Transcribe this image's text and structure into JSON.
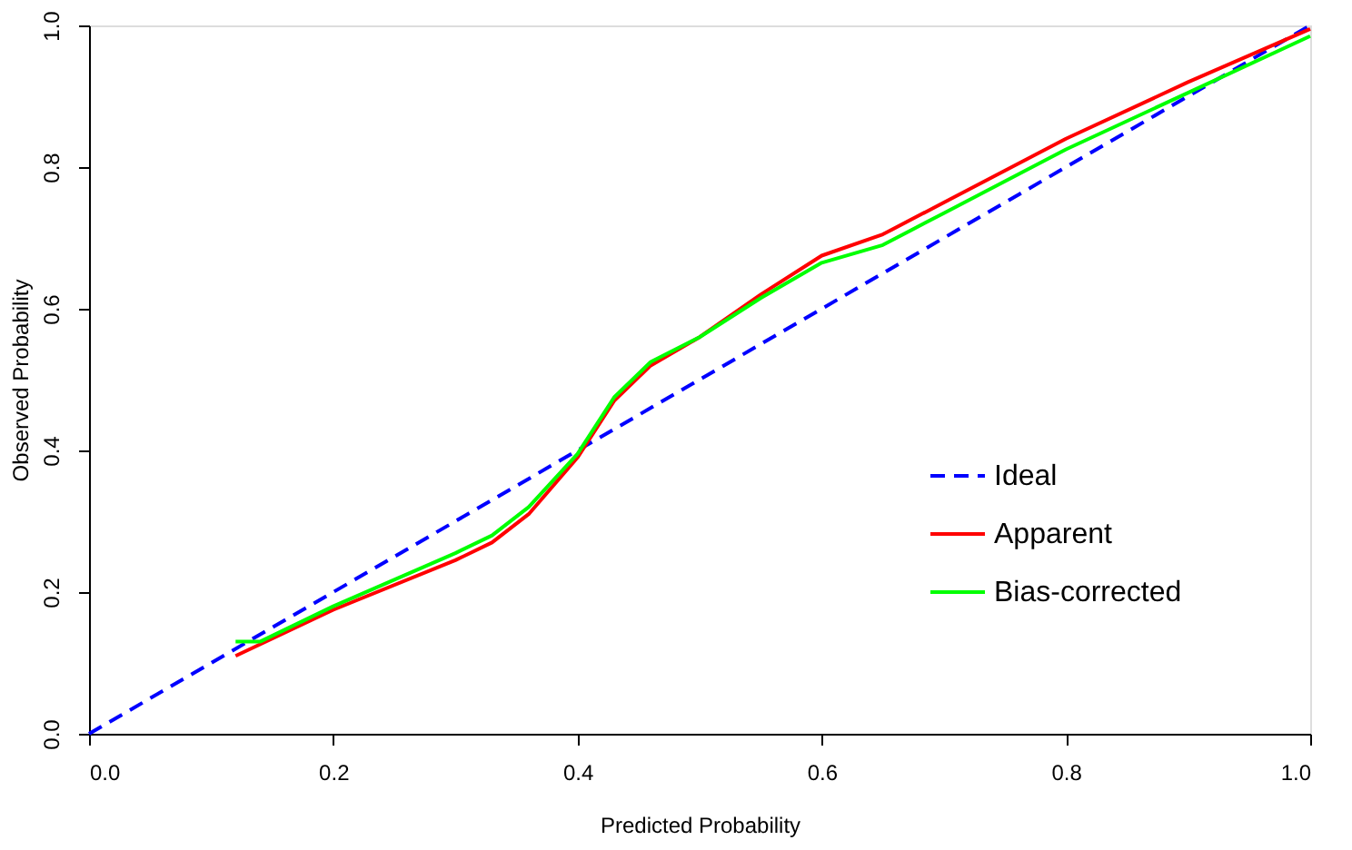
{
  "chart_data": {
    "type": "line",
    "xlabel": "Predicted Probability",
    "ylabel": "Observed Probability",
    "xlim": [
      0,
      1
    ],
    "ylim": [
      0,
      1
    ],
    "xticks": [
      {
        "value": 0,
        "label": "0.0"
      },
      0.2,
      0.4,
      0.6,
      0.8,
      {
        "value": 1,
        "label": "1.0"
      }
    ],
    "yticks": [
      {
        "value": 0,
        "label": "0.0"
      },
      0.2,
      0.4,
      0.6,
      0.8,
      {
        "value": 1,
        "label": "1.0"
      }
    ],
    "grid": false,
    "legend": "bottom right",
    "marker": "none",
    "series": [
      {
        "name": "Ideal",
        "color": "#0000ff",
        "line_style": "dashed",
        "x": [
          0,
          1
        ],
        "values": [
          0,
          1
        ]
      },
      {
        "name": "Apparent",
        "color": "#ff0000",
        "line_style": "solid",
        "x": [
          0.12,
          0.2,
          0.3,
          0.33,
          0.36,
          0.4,
          0.43,
          0.46,
          0.5,
          0.55,
          0.6,
          0.65,
          0.7,
          0.8,
          0.9,
          1.0
        ],
        "values": [
          0.11,
          0.175,
          0.245,
          0.27,
          0.31,
          0.39,
          0.47,
          0.52,
          0.56,
          0.62,
          0.675,
          0.705,
          0.75,
          0.84,
          0.92,
          0.995
        ]
      },
      {
        "name": "Bias-corrected",
        "color": "#00ff00",
        "line_style": "solid",
        "x": [
          0.12,
          0.14,
          0.2,
          0.3,
          0.33,
          0.36,
          0.4,
          0.43,
          0.46,
          0.5,
          0.55,
          0.6,
          0.65,
          0.7,
          0.8,
          0.9,
          1.0
        ],
        "values": [
          0.13,
          0.13,
          0.18,
          0.255,
          0.28,
          0.32,
          0.395,
          0.475,
          0.525,
          0.56,
          0.615,
          0.665,
          0.69,
          0.735,
          0.825,
          0.905,
          0.985
        ]
      }
    ]
  }
}
